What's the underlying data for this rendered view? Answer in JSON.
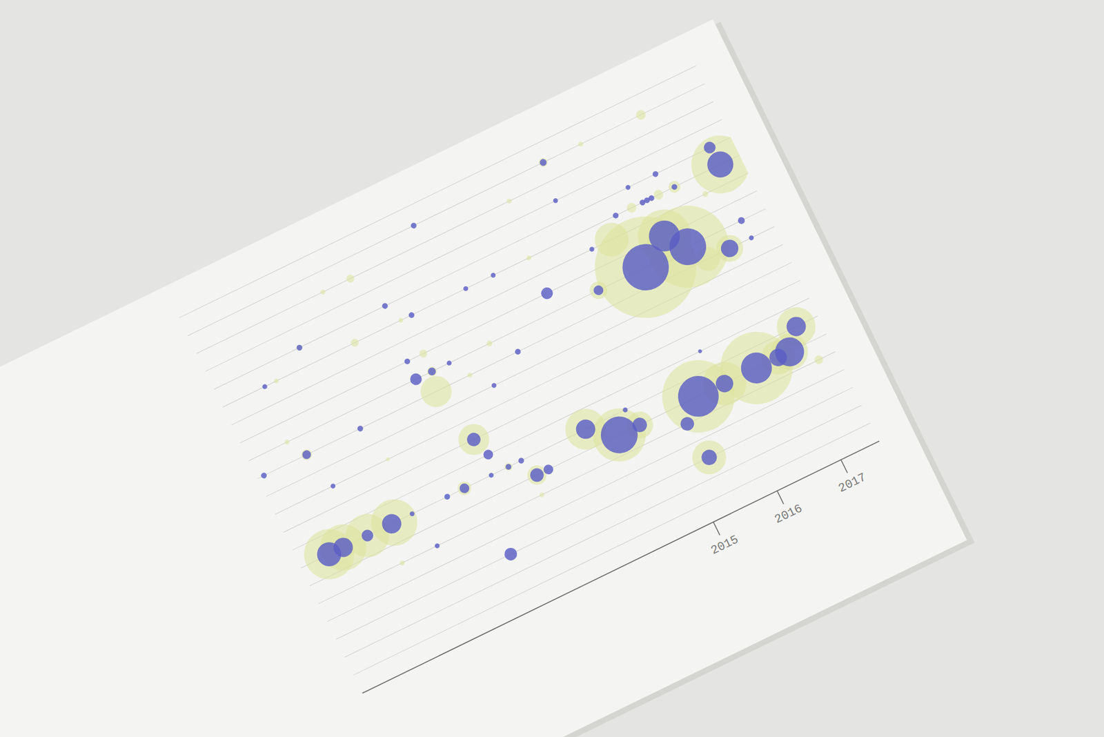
{
  "chart_data": {
    "type": "bubble",
    "xlim": [
      2009.5,
      2017.6
    ],
    "xticks": [
      2015,
      2016,
      2017
    ],
    "ylim": [
      0,
      21
    ],
    "yticks": [
      0,
      1,
      2,
      3,
      4,
      5,
      6,
      7,
      8,
      9,
      10,
      11,
      12,
      13,
      14,
      15,
      16,
      17,
      18,
      19,
      20,
      21
    ],
    "grid": true,
    "tick_labels": "x",
    "series": [
      {
        "color": "#dde39a",
        "x": [
          2015.72,
          2016.38,
          2016.15,
          2017.3,
          2015.46,
          2016.9,
          2016.56,
          2014.98,
          2016.58,
          2016.33,
          2015.91,
          2016.93,
          2016.6,
          2015.66,
          2015.07,
          2014.4,
          2014.3,
          2011.91,
          2011.48,
          2012.29,
          2013.27,
          2011.57,
          2010.84,
          2010.34,
          2012.37,
          2012.3,
          2012.37,
          2012.83,
          2010.1,
          2010.27,
          2011.27,
          2012.48,
          2012.75,
          2013.06,
          2013.0,
          2010.81,
          2012.06,
          2010.96,
          2010.54,
          2010.16,
          2009.94,
          2013.96,
          2014.35,
          2014.67,
          2015.35,
          2015.59,
          2016.0,
          2016.5,
          2016.84,
          2017.02,
          2017.26,
          2017.34
        ],
        "values": [
          13,
          13,
          14,
          16,
          15,
          12,
          12,
          13,
          16,
          16,
          16,
          15,
          20,
          20,
          20,
          19,
          16,
          19,
          19,
          16,
          13,
          16,
          17,
          16,
          14,
          12,
          13,
          12,
          13,
          12,
          10,
          9,
          7,
          6,
          5,
          5,
          7,
          7,
          7,
          7,
          7,
          7,
          6,
          6,
          3,
          6,
          6,
          6,
          6,
          6,
          7,
          5
        ],
        "size": [
          441,
          289,
          121,
          144,
          49,
          31,
          25,
          13,
          5.8,
          4,
          4,
          1.4,
          4,
          1,
          3.2,
          1,
          1,
          2.6,
          1,
          1,
          1.4,
          2.6,
          1.4,
          1,
          2.6,
          41,
          4,
          1,
          1,
          4.8,
          0.6,
          41,
          2.6,
          16,
          1,
          1,
          7.8,
          92,
          81,
          92,
          108,
          71,
          121,
          31,
          49,
          225,
          81,
          225,
          49,
          58,
          64,
          3.2
        ]
      },
      {
        "color": "#5b5ec4",
        "x": [
          2015.72,
          2016.38,
          2016.15,
          2017.3,
          2017.27,
          2016.9,
          2014.98,
          2014.31,
          2016.58,
          2016.42,
          2015.99,
          2016.08,
          2016.15,
          2016.22,
          2017.22,
          2017.24,
          2015.66,
          2015.15,
          2015.07,
          2014.99,
          2013.04,
          2013.74,
          2013.31,
          2012.18,
          2012.46,
          2013.58,
          2010.84,
          2010.16,
          2012.12,
          2012.12,
          2012.37,
          2012.64,
          2013.07,
          2011.11,
          2010.27,
          2009.6,
          2010.41,
          2012.48,
          2012.57,
          2012.75,
          2012.95,
          2013.06,
          2013.24,
          2012.48,
          2012.06,
          2011.79,
          2011.36,
          2012.24,
          2010.92,
          2010.54,
          2010.16,
          2009.94,
          2011.24,
          2013.96,
          2014.35,
          2014.67,
          2014.58,
          2015.35,
          2015.28,
          2015.59,
          2016.0,
          2016.5,
          2016.84,
          2017.02,
          2017.26,
          2015.89
        ],
        "values": [
          13,
          13,
          14,
          16,
          17,
          12,
          13,
          14,
          16,
          17,
          17,
          16,
          16,
          16,
          13,
          12,
          16,
          15,
          20,
          18,
          20,
          16,
          16,
          17,
          16,
          12,
          17,
          16,
          14,
          13,
          13,
          13,
          11,
          12,
          12,
          12,
          10,
          9,
          8,
          7,
          7,
          6,
          6,
          7,
          7,
          7,
          5,
          3,
          7,
          7,
          7,
          7,
          7,
          7,
          6,
          6,
          7,
          3,
          5,
          6,
          6,
          6,
          6,
          6,
          7,
          8
        ],
        "size": [
          92,
          58,
          41,
          29,
          5.8,
          13,
          4,
          5.8,
          1.4,
          1.4,
          1,
          1.4,
          1.4,
          1.4,
          2,
          1,
          1.4,
          1,
          2,
          1,
          1.4,
          1,
          1,
          1.4,
          1.4,
          1.4,
          1.4,
          1,
          1.4,
          5.8,
          2.6,
          1,
          1,
          1.4,
          3.2,
          1.4,
          1,
          7.8,
          4,
          1.4,
          1.4,
          7.8,
          4,
          1,
          4,
          1.4,
          1,
          6.8,
          16,
          5.8,
          16,
          25,
          1,
          16,
          58,
          9,
          1,
          10,
          7.8,
          71,
          13,
          41,
          13,
          36,
          16,
          0.6
        ]
      }
    ]
  }
}
